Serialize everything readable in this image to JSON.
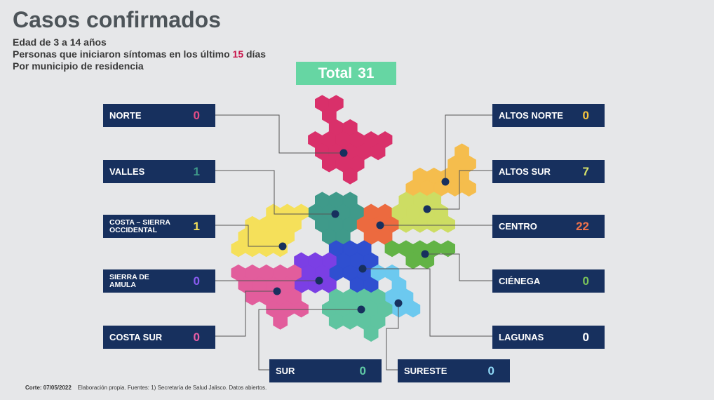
{
  "header": {
    "title": "Casos confirmados",
    "line1": "Edad de 3 a 14 años",
    "line2_prefix": "Personas que iniciaron síntomas en los último",
    "line2_days": "15",
    "line2_suffix": "días",
    "line3": "Por municipio de residencia"
  },
  "total": {
    "label": "Total",
    "value": "31"
  },
  "regions": {
    "norte": {
      "name": "NORTE",
      "value": "0",
      "color": "#d9306a",
      "value_color": "#e64d86"
    },
    "valles": {
      "name": "VALLES",
      "value": "1",
      "color": "#3f9a8a",
      "value_color": "#3f9a8a"
    },
    "costa_sierra": {
      "name": "COSTA – SIERRA OCCIDENTAL",
      "value": "1",
      "color": "#f5e05a",
      "value_color": "#f5e05a"
    },
    "sierra_amula": {
      "name": "SIERRA DE AMULA",
      "value": "0",
      "color": "#7b3fe4",
      "value_color": "#8c5cf2"
    },
    "costa_sur": {
      "name": "COSTA SUR",
      "value": "0",
      "color": "#e25d9c",
      "value_color": "#ea5ea6"
    },
    "sur": {
      "name": "SUR",
      "value": "0",
      "color": "#5fc4a0",
      "value_color": "#5fc9a5"
    },
    "sureste": {
      "name": "SURESTE",
      "value": "0",
      "color": "#6cc9ef",
      "value_color": "#8fd8f6"
    },
    "lagunas": {
      "name": "LAGUNAS",
      "value": "0",
      "color": "#2f4fd0",
      "value_color": "#ffffff"
    },
    "cienega": {
      "name": "CIÉNEGA",
      "value": "0",
      "color": "#62b346",
      "value_color": "#7bc45a"
    },
    "centro": {
      "name": "CENTRO",
      "value": "22",
      "color": "#ec6a3f",
      "value_color": "#f2734a"
    },
    "altos_sur": {
      "name": "ALTOS SUR",
      "value": "7",
      "color": "#cddd63",
      "value_color": "#d8e46b"
    },
    "altos_norte": {
      "name": "ALTOS NORTE",
      "value": "0",
      "color": "#f5bd4d",
      "value_color": "#f7c43e"
    }
  },
  "footer": {
    "corte_label": "Corte: 07/05/2022",
    "text": "Elaboración propia.  Fuentes:  1) Secretaría de Salud Jalisco.  Datos abiertos."
  }
}
